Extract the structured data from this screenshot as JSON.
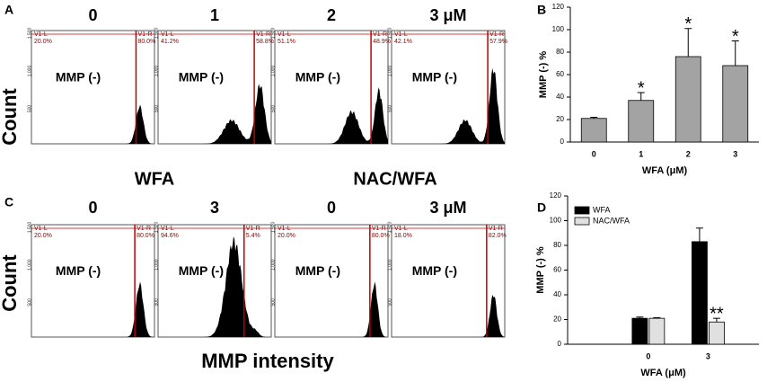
{
  "figure": {
    "rows": [
      {
        "letter": "A",
        "group_headers": [],
        "headers": [
          "0",
          "1",
          "2",
          "3 μM"
        ],
        "plots": [
          {
            "left_gate": "V1-L",
            "left_pct": "20.0%",
            "right_gate": "V1-R",
            "right_pct": "80.0%",
            "label": "MMP (-)"
          },
          {
            "left_gate": "V1-L",
            "left_pct": "41.2%",
            "right_gate": "V1-R",
            "right_pct": "58.8%",
            "label": "MMP (-)"
          },
          {
            "left_gate": "V1-L",
            "left_pct": "51.1%",
            "right_gate": "V1-R",
            "right_pct": "48.9%",
            "label": "MMP (-)"
          },
          {
            "left_gate": "V1-L",
            "left_pct": "42.1%",
            "right_gate": "V1-R",
            "right_pct": "57.9%",
            "label": "MMP (-)"
          }
        ]
      },
      {
        "letter": "C",
        "group_headers": [
          "WFA",
          "NAC/WFA"
        ],
        "headers": [
          "0",
          "3",
          "0",
          "3 μM"
        ],
        "plots": [
          {
            "left_gate": "V1-L",
            "left_pct": "20.0%",
            "right_gate": "V1-R",
            "right_pct": "80.0%",
            "label": "MMP (-)"
          },
          {
            "left_gate": "V1-L",
            "left_pct": "94.6%",
            "right_gate": "V1-R",
            "right_pct": "5.4%",
            "label": "MMP (-)"
          },
          {
            "left_gate": "V1-L",
            "left_pct": "20.0%",
            "right_gate": "V1-R",
            "right_pct": "80.0%",
            "label": "MMP (-)"
          },
          {
            "left_gate": "V1-L",
            "left_pct": "18.0%",
            "right_gate": "V1-R",
            "right_pct": "82.0%",
            "label": "MMP (-)"
          }
        ]
      }
    ],
    "y_label": "Count",
    "x_label": "MMP intensity",
    "hist_yticks": [
      "1,500",
      "1,000",
      "500"
    ]
  },
  "chart_data": [
    {
      "type": "bar",
      "letter": "B",
      "categories": [
        "0",
        "1",
        "2",
        "3"
      ],
      "series": [
        {
          "name": null,
          "color": "#a3a3a3",
          "values": [
            21,
            37,
            76,
            68
          ],
          "errors": [
            1,
            7,
            25,
            22
          ],
          "annotations": [
            null,
            "*",
            "*",
            "*"
          ]
        }
      ],
      "xlabel": "WFA (μM)",
      "ylabel": "MMP (-) %",
      "ylim": [
        0,
        120
      ],
      "yticks": [
        0,
        20,
        40,
        60,
        80,
        100,
        120
      ],
      "legend": false
    },
    {
      "type": "bar",
      "letter": "D",
      "categories": [
        "0",
        "3"
      ],
      "series": [
        {
          "name": "WFA",
          "color": "#000000",
          "values": [
            21,
            83
          ],
          "errors": [
            1,
            11
          ],
          "annotations": [
            null,
            null
          ]
        },
        {
          "name": "NAC/WFA",
          "color": "#e0e0e0",
          "values": [
            21,
            18
          ],
          "errors": [
            0.5,
            3
          ],
          "annotations": [
            null,
            "**"
          ]
        }
      ],
      "xlabel": "WFA (μM)",
      "ylabel": "MMP (-) %",
      "ylim": [
        0,
        120
      ],
      "yticks": [
        0,
        20,
        40,
        60,
        80,
        100,
        120
      ],
      "legend": "upper left"
    }
  ]
}
